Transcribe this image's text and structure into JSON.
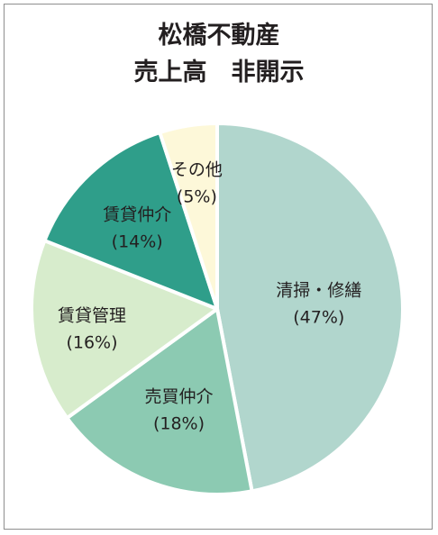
{
  "chart_data": {
    "type": "pie",
    "title": "松橋不動産",
    "subtitle": "売上高　非開示",
    "slices": [
      {
        "label": "清掃・修繕",
        "pct_label": "(47%)",
        "value": 47,
        "color": "#b1d6cd"
      },
      {
        "label": "売買仲介",
        "pct_label": "(18%)",
        "value": 18,
        "color": "#8ccab2"
      },
      {
        "label": "賃貸管理",
        "pct_label": "(16%)",
        "value": 16,
        "color": "#d7eccc"
      },
      {
        "label": "賃貸仲介",
        "pct_label": "(14%)",
        "value": 14,
        "color": "#2f9e8a"
      },
      {
        "label": "その他",
        "pct_label": "(5%)",
        "value": 5,
        "color": "#fdf8d9"
      }
    ],
    "start": "12 o'clock",
    "direction": "clockwise",
    "legend": "none"
  }
}
